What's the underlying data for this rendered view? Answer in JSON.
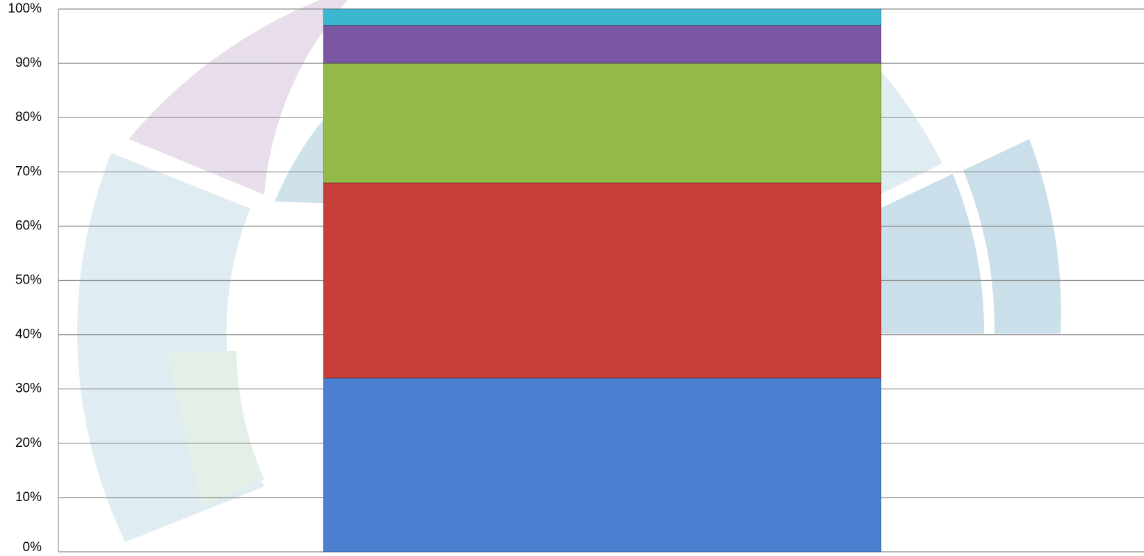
{
  "chart_data": {
    "type": "stacked_bar_100",
    "categories": [
      null
    ],
    "series": [
      {
        "color": "#4a80cf",
        "values": [
          32
        ]
      },
      {
        "color": "#c83e3b",
        "values": [
          36
        ]
      },
      {
        "color": "#93b94a",
        "values": [
          22
        ]
      },
      {
        "color": "#7a56a3",
        "values": [
          7
        ]
      },
      {
        "color": "#3db7d0",
        "values": [
          3
        ]
      }
    ],
    "ylim": [
      0,
      100
    ],
    "yticks": [
      {
        "value": 0,
        "label": "0%"
      },
      {
        "value": 10,
        "label": "10%"
      },
      {
        "value": 20,
        "label": "20%"
      },
      {
        "value": 30,
        "label": "30%"
      },
      {
        "value": 40,
        "label": "40%"
      },
      {
        "value": 50,
        "label": "50%"
      },
      {
        "value": 60,
        "label": "60%"
      },
      {
        "value": 70,
        "label": "70%"
      },
      {
        "value": 80,
        "label": "80%"
      },
      {
        "value": 90,
        "label": "90%"
      },
      {
        "value": 100,
        "label": "100%"
      }
    ],
    "grid": true
  }
}
